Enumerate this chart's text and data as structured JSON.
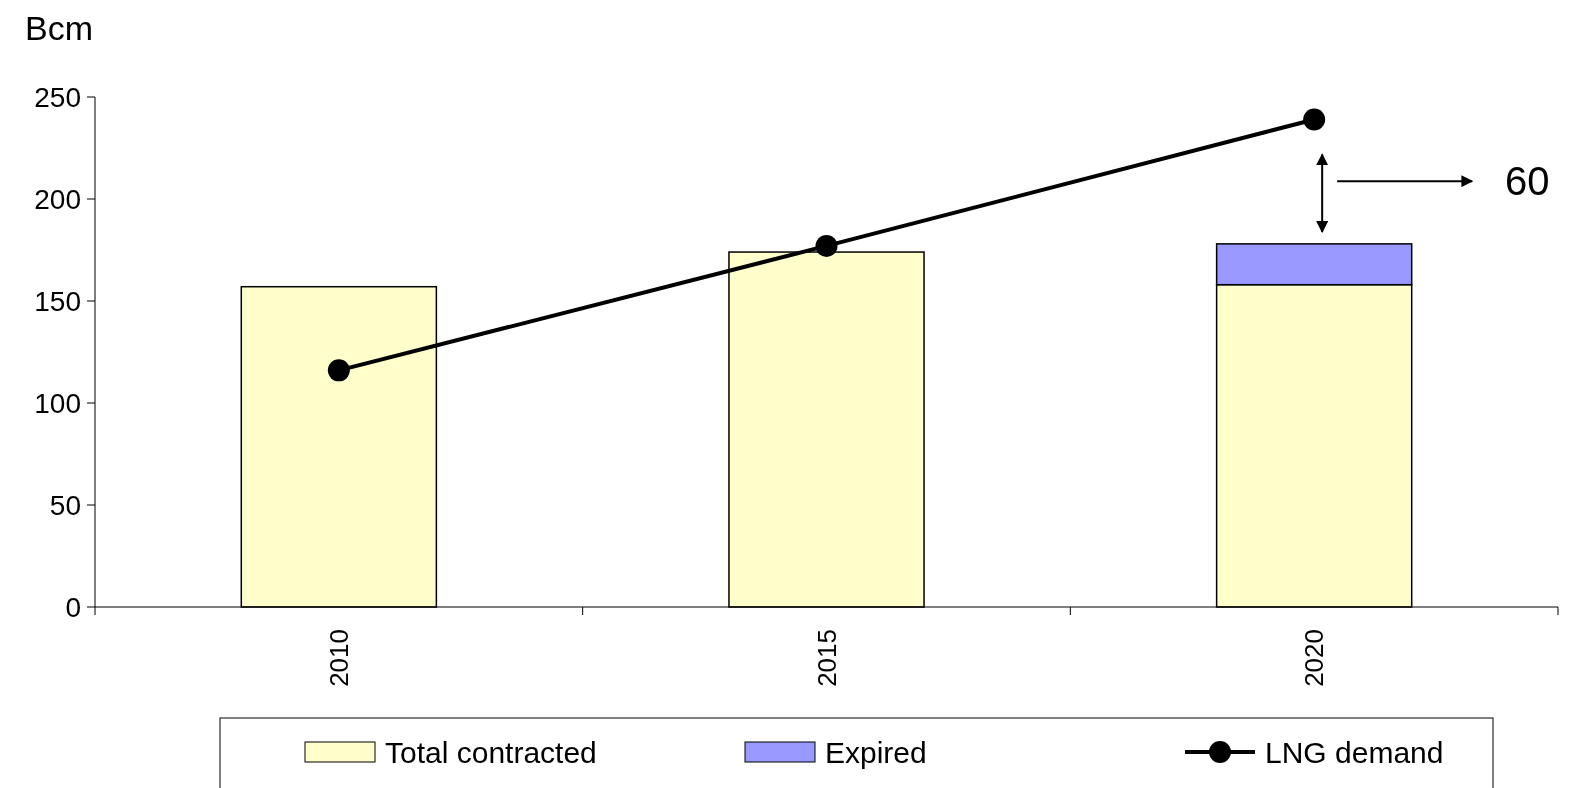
{
  "chart_data": {
    "type": "bar",
    "ylabel": "Bcm",
    "categories": [
      "2010",
      "2015",
      "2020"
    ],
    "stacked": true,
    "ylim": [
      0,
      250
    ],
    "yticks": [
      0,
      50,
      100,
      150,
      200,
      250
    ],
    "grid": false,
    "legend": "bottom",
    "marker": "circle",
    "annotations": [
      "60"
    ],
    "series": [
      {
        "name": "Total contracted",
        "color": "#ffffcc",
        "values": [
          157,
          174,
          158
        ]
      },
      {
        "name": "Expired",
        "color": "#9999ff",
        "values": [
          null,
          null,
          20
        ]
      },
      {
        "name": "LNG demand",
        "type": "line",
        "color": "#000000",
        "values": [
          116,
          177,
          239
        ]
      }
    ]
  }
}
